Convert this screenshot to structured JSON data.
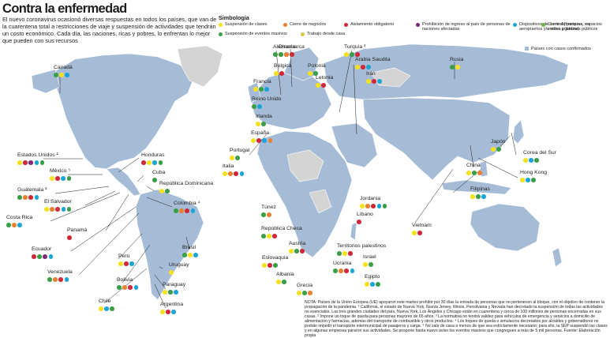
{
  "title": "Contra la enfermedad",
  "intro": "El nuevo coronavirus ocasionó diversas  respuestas en todos los países, que van de la cuarentena total a restricciones de viaje y suspensión de actividades que tendrán un costo económico. Cada día, las naciones, ricas y pobres, lo enfrentan lo mejor que pueden con sus recursos",
  "legend": {
    "title": "Simbología",
    "items": [
      {
        "key": "clases",
        "label": "Suspensión de clases",
        "color": "#f5e11e"
      },
      {
        "key": "negocios",
        "label": "Cierre de negocios",
        "color": "#e8802f"
      },
      {
        "key": "aislamiento",
        "label": "Aislamiento obligatorio",
        "color": "#d0283a"
      },
      {
        "key": "prohibicion",
        "label": "Prohibición de ingreso al país de personas de naciones afectadas",
        "color": "#7b2a78"
      },
      {
        "key": "control",
        "label": "Dispositivos de control (fronteras, en aeropuertos y/o sitios públicos)",
        "color": "#1aa5d6"
      },
      {
        "key": "parques",
        "label": "Cierre de parques, espacios verdes y jardines públicos",
        "color": "#74b443"
      },
      {
        "key": "eventos",
        "label": "Suspensión de eventos masivos",
        "color": "#3a9e48"
      },
      {
        "key": "casa",
        "label": "Trabajo desde casa",
        "color": "#d7c84a"
      }
    ],
    "confirmed": "Países con casos confirmados"
  },
  "map_colors": {
    "confirmed": "#a6bcd6",
    "unaffected": "#d4d4d4",
    "water": "#ffffff"
  },
  "countries": [
    {
      "name": "Canadá",
      "dots": [
        "eventos",
        "clases",
        "control"
      ]
    },
    {
      "name": "Estados Unidos ¹",
      "dots": [
        "clases",
        "aislamiento",
        "prohibicion",
        "control",
        "eventos"
      ]
    },
    {
      "name": "México ⁵",
      "dots": [
        "clases",
        "aislamiento",
        "control",
        "eventos"
      ]
    },
    {
      "name": "Guatemala ²",
      "dots": [
        "eventos",
        "negocios",
        "aislamiento",
        "control"
      ]
    },
    {
      "name": "El Salvador",
      "dots": [
        "clases",
        "negocios",
        "aislamiento",
        "control",
        "eventos"
      ]
    },
    {
      "name": "Costa Rica",
      "dots": [
        "eventos",
        "negocios",
        "control"
      ]
    },
    {
      "name": "Panamá",
      "dots": [
        "aislamiento"
      ]
    },
    {
      "name": "Ecuador",
      "dots": [
        "aislamiento",
        "eventos",
        "prohibicion",
        "control"
      ]
    },
    {
      "name": "Venezuela",
      "dots": [
        "eventos",
        "negocios",
        "aislamiento",
        "control"
      ]
    },
    {
      "name": "Chile",
      "dots": [
        "clases",
        "control",
        "eventos"
      ]
    },
    {
      "name": "Honduras",
      "dots": [
        "aislamiento",
        "clases",
        "control",
        "eventos"
      ]
    },
    {
      "name": "Cuba",
      "dots": [
        "eventos"
      ]
    },
    {
      "name": "República Dominicana",
      "dots": [
        "clases",
        "eventos"
      ]
    },
    {
      "name": "Colombia ⁴",
      "dots": [
        "eventos",
        "negocios",
        "aislamiento",
        "control"
      ]
    },
    {
      "name": "Perú",
      "dots": [
        "clases",
        "aislamiento",
        "control"
      ]
    },
    {
      "name": "Bolivia",
      "dots": [
        "eventos",
        "negocios",
        "aislamiento",
        "control"
      ]
    },
    {
      "name": "Uruguay",
      "dots": [
        "clases"
      ]
    },
    {
      "name": "Paraguay",
      "dots": [
        "clases",
        "eventos",
        "control"
      ]
    },
    {
      "name": "Argentina",
      "dots": [
        "clases",
        "aislamiento",
        "control"
      ]
    },
    {
      "name": "Brasil",
      "dots": [
        "eventos",
        "clases",
        "control"
      ]
    },
    {
      "name": "Alemania",
      "dots": [
        "eventos",
        "negocios",
        "control"
      ]
    },
    {
      "name": "Bélgica",
      "dots": [
        "clases",
        "aislamiento"
      ]
    },
    {
      "name": "Francia",
      "dots": [
        "clases",
        "eventos",
        "control"
      ]
    },
    {
      "name": "Reino Unido",
      "dots": [
        "eventos",
        "control"
      ]
    },
    {
      "name": "Irlanda",
      "dots": [
        "clases",
        "eventos"
      ]
    },
    {
      "name": "España",
      "dots": [
        "clases",
        "aislamiento",
        "control",
        "negocios"
      ]
    },
    {
      "name": "Portugal",
      "dots": [
        "clases",
        "eventos"
      ]
    },
    {
      "name": "Italia",
      "dots": [
        "clases",
        "negocios",
        "aislamiento",
        "control"
      ]
    },
    {
      "name": "Dinamarca",
      "dots": [
        "eventos",
        "negocios",
        "aislamiento"
      ]
    },
    {
      "name": "Polonia",
      "dots": [
        "clases",
        "eventos"
      ]
    },
    {
      "name": "Letonia",
      "dots": [
        "clases",
        "aislamiento"
      ]
    },
    {
      "name": "Túnez",
      "dots": [
        "eventos",
        "negocios"
      ]
    },
    {
      "name": "República Checa",
      "dots": [
        "eventos",
        "clases",
        "aislamiento"
      ]
    },
    {
      "name": "Austria",
      "dots": [
        "clases",
        "eventos",
        "aislamiento"
      ]
    },
    {
      "name": "Eslovaquia",
      "dots": [
        "clases",
        "aislamiento",
        "eventos"
      ]
    },
    {
      "name": "Albania",
      "dots": [
        "clases",
        "eventos"
      ]
    },
    {
      "name": "Grecia",
      "dots": [
        "clases",
        "eventos",
        "negocios"
      ]
    },
    {
      "name": "Turquía ³",
      "dots": [
        "clases",
        "eventos",
        "aislamiento"
      ]
    },
    {
      "name": "Arabia Saudita",
      "dots": [
        "clases",
        "aislamiento",
        "control"
      ]
    },
    {
      "name": "Irán",
      "dots": [
        "clases",
        "aislamiento",
        "control"
      ]
    },
    {
      "name": "Jordania",
      "dots": [
        "clases",
        "negocios",
        "aislamiento",
        "control",
        "eventos"
      ]
    },
    {
      "name": "Líbano",
      "dots": [
        "aislamiento"
      ]
    },
    {
      "name": "Territorios palestinos",
      "dots": [
        "eventos",
        "clases",
        "aislamiento"
      ]
    },
    {
      "name": "Israel",
      "dots": [
        "clases",
        "eventos"
      ]
    },
    {
      "name": "Ucrania",
      "dots": [
        "eventos",
        "negocios",
        "aislamiento",
        "control"
      ]
    },
    {
      "name": "Egipto",
      "dots": [
        "clases",
        "control",
        "eventos"
      ]
    },
    {
      "name": "Rusia",
      "dots": [
        "eventos",
        "clases"
      ]
    },
    {
      "name": "Japón",
      "dots": [
        "clases",
        "eventos"
      ]
    },
    {
      "name": "Corea del Sur",
      "dots": [
        "clases",
        "control",
        "eventos"
      ]
    },
    {
      "name": "China",
      "dots": [
        "clases",
        "eventos",
        "negocios"
      ]
    },
    {
      "name": "Hong Kong",
      "dots": [
        "clases",
        "control",
        "eventos"
      ]
    },
    {
      "name": "Filipinas",
      "dots": [
        "clases",
        "eventos",
        "control"
      ]
    },
    {
      "name": "Vietnam",
      "dots": [
        "clases",
        "aislamiento"
      ]
    }
  ],
  "note": "NOTA: Países de la Unión Europea (UE) apoyaron este martes prohibir por 30 días la entrada de personas que no pertenecen al bloque, con el objetivo de contener la propagación de la pandemia. ¹ California, el estado de Nueva York, Nueva Jersey, Illinois, Pensilvania y Nevada han decretado la suspensión de todas las actividades no esenciales. Las tres grandes ciudades del país, Nueva York, Los Ángeles y Chicago están en cuarentena y cerca de 100 millones de personas encerradas en sus casas. ² Impone un toque de queda para personas mayores de 65 años. ³ La normativa no tendrá validez para vehículos de emergencia y servicios a domicilio de alimentación y farmacias, además del transporte de combustible y otros productos. ⁴ Los toques de queda o simulacros decretados por alcaldes y gobernadores no podrán impedir el transporte intermunicipal de pasajeros y carga. ⁵ No salir de casa a menos de que sea estrictamente necesario; para ello, la SEP suspendió las clases y en algunas empresas pararon sus actividades. Se pospone hasta nuevo aviso los eventos masivos que congreguen a más de 5 mil personas. Fuente: Elaboración propia"
}
